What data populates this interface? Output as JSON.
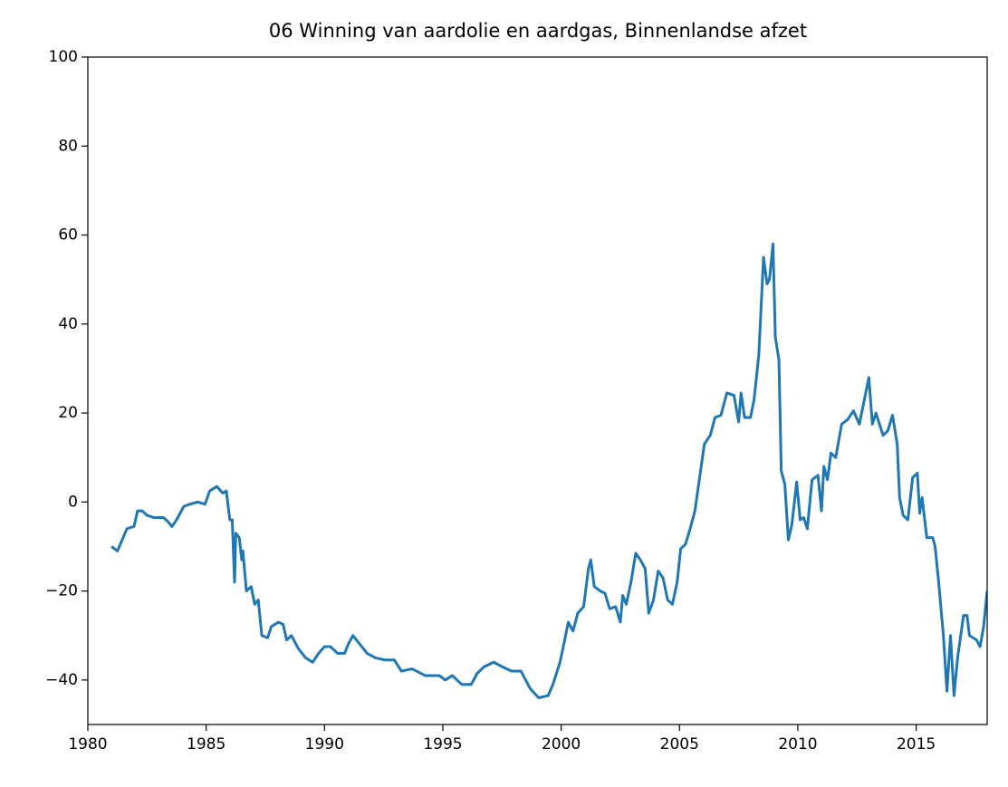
{
  "chart_data": {
    "type": "line",
    "title": "06 Winning van aardolie en aardgas, Binnenlandse afzet",
    "x": [
      1981.0,
      1981.25,
      1981.45,
      1981.65,
      1981.95,
      1982.1,
      1982.3,
      1982.5,
      1982.8,
      1983.2,
      1983.4,
      1983.55,
      1983.75,
      1984.05,
      1984.3,
      1984.65,
      1984.95,
      1985.15,
      1985.45,
      1985.7,
      1985.85,
      1986.0,
      1986.1,
      1986.2,
      1986.25,
      1986.4,
      1986.5,
      1986.55,
      1986.7,
      1986.9,
      1987.05,
      1987.2,
      1987.35,
      1987.6,
      1987.75,
      1988.05,
      1988.25,
      1988.4,
      1988.6,
      1988.9,
      1989.2,
      1989.5,
      1989.75,
      1990.0,
      1990.25,
      1990.55,
      1990.85,
      1991.0,
      1991.2,
      1991.5,
      1991.8,
      1992.15,
      1992.55,
      1992.95,
      1993.25,
      1993.7,
      1994.25,
      1994.85,
      1995.1,
      1995.4,
      1995.8,
      1996.2,
      1996.45,
      1996.75,
      1997.15,
      1997.5,
      1997.9,
      1998.3,
      1998.7,
      1999.05,
      1999.45,
      1999.65,
      1999.95,
      2000.15,
      2000.3,
      2000.5,
      2000.7,
      2000.95,
      2001.15,
      2001.25,
      2001.4,
      2001.65,
      2001.85,
      2002.05,
      2002.3,
      2002.5,
      2002.6,
      2002.75,
      2002.95,
      2003.15,
      2003.35,
      2003.55,
      2003.7,
      2003.9,
      2004.1,
      2004.3,
      2004.5,
      2004.7,
      2004.9,
      2005.05,
      2005.25,
      2005.45,
      2005.65,
      2005.85,
      2006.05,
      2006.3,
      2006.5,
      2006.75,
      2007.0,
      2007.3,
      2007.5,
      2007.6,
      2007.75,
      2008.0,
      2008.15,
      2008.35,
      2008.55,
      2008.7,
      2008.8,
      2008.95,
      2009.05,
      2009.2,
      2009.3,
      2009.45,
      2009.6,
      2009.75,
      2009.95,
      2010.1,
      2010.25,
      2010.4,
      2010.6,
      2010.85,
      2011.0,
      2011.1,
      2011.25,
      2011.4,
      2011.6,
      2011.85,
      2012.1,
      2012.35,
      2012.6,
      2012.85,
      2013.0,
      2013.15,
      2013.3,
      2013.6,
      2013.8,
      2014.0,
      2014.2,
      2014.3,
      2014.45,
      2014.65,
      2014.85,
      2015.05,
      2015.15,
      2015.25,
      2015.45,
      2015.7,
      2015.8,
      2015.95,
      2016.15,
      2016.3,
      2016.45,
      2016.6,
      2016.75,
      2017.0,
      2017.15,
      2017.25,
      2017.55,
      2017.7,
      2017.85,
      2018.0
    ],
    "series": [
      {
        "color": "#1f77b4",
        "values": [
          -10,
          -11,
          -8.5,
          -6,
          -5.5,
          -2,
          -2,
          -3,
          -3.5,
          -3.5,
          -4.5,
          -5.5,
          -4,
          -1,
          -0.5,
          0,
          -0.5,
          2.5,
          3.5,
          2,
          2.5,
          -4,
          -4,
          -18,
          -7,
          -8,
          -13,
          -11,
          -20,
          -19,
          -23,
          -22,
          -30,
          -30.5,
          -28,
          -27,
          -27.5,
          -31,
          -30,
          -33,
          -35,
          -36,
          -34,
          -32.5,
          -32.5,
          -34,
          -34,
          -32,
          -30,
          -32,
          -34,
          -35,
          -35.5,
          -35.5,
          -38,
          -37.5,
          -39,
          -39,
          -40,
          -39,
          -41,
          -41,
          -38.5,
          -37,
          -36,
          -37,
          -38,
          -38,
          -42,
          -44,
          -43.5,
          -41,
          -36,
          -31,
          -27,
          -29,
          -25,
          -23.5,
          -15,
          -13,
          -19,
          -20,
          -20.5,
          -24,
          -23.5,
          -27,
          -21,
          -23,
          -18,
          -11.5,
          -13,
          -15,
          -25,
          -22,
          -15.5,
          -17,
          -22,
          -23,
          -18,
          -10.5,
          -9.5,
          -6,
          -2,
          5.5,
          13,
          15,
          19,
          19.5,
          24.5,
          24,
          18,
          24.5,
          19,
          19,
          23,
          33,
          55,
          49,
          50,
          58,
          37,
          32,
          7,
          4,
          -8.5,
          -5,
          4.5,
          -4,
          -3.5,
          -6,
          5,
          6,
          -2,
          8,
          5,
          11,
          10,
          17.5,
          18.5,
          20.5,
          17.5,
          24,
          28,
          17.5,
          20,
          15,
          16,
          19.5,
          13,
          1,
          -3,
          -4,
          5.5,
          6.5,
          -2.5,
          1,
          -8,
          -8,
          -10,
          -18,
          -30,
          -42.5,
          -30,
          -43.5,
          -35,
          -25.5,
          -25.5,
          -30,
          -31,
          -32.5,
          -28,
          -20
        ]
      }
    ],
    "xlim": [
      1980,
      2018
    ],
    "ylim": [
      -50,
      100
    ],
    "xticks": [
      1980,
      1985,
      1990,
      1995,
      2000,
      2005,
      2010,
      2015
    ],
    "yticks": [
      {
        "value": -40,
        "label": "−40"
      },
      {
        "value": -20,
        "label": "−20"
      },
      0,
      20,
      40,
      60,
      80,
      100
    ]
  }
}
